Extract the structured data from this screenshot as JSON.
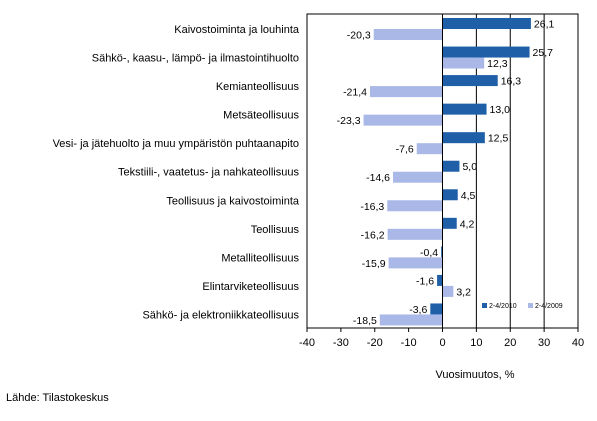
{
  "chart_data": {
    "type": "bar",
    "orientation": "horizontal",
    "categories": [
      "Kaivostoiminta ja louhinta",
      "Sähkö-, kaasu-, lämpö- ja ilmastointihuolto",
      "Kemianteollisuus",
      "Metsäteollisuus",
      "Vesi- ja jätehuolto ja muu ympäristön puhtaanapito",
      "Tekstiili-, vaatetus- ja nahkateollisuus",
      "Teollisuus ja kaivostoiminta",
      "Teollisuus",
      "Metalliteollisuus",
      "Elintarviketeollisuus",
      "Sähkö- ja elektroniikkateollisuus"
    ],
    "series": [
      {
        "name": "2-4/2010",
        "color": "#1f5fa8",
        "values": [
          26.1,
          25.7,
          16.3,
          13.0,
          12.5,
          5.0,
          4.5,
          4.2,
          -0.4,
          -1.6,
          -3.6
        ],
        "labels": [
          "26,1",
          "25,7",
          "16,3",
          "13,0",
          "12,5",
          "5,0",
          "4,5",
          "4,2",
          "-0,4",
          "-1,6",
          "-3,6"
        ]
      },
      {
        "name": "2-4/2009",
        "color": "#a9b8e6",
        "values": [
          -20.3,
          12.3,
          -21.4,
          -23.3,
          -7.6,
          -14.6,
          -16.3,
          -16.2,
          -15.9,
          3.2,
          -18.5
        ],
        "labels": [
          "-20,3",
          "12,3",
          "-21,4",
          "-23,3",
          "-7,6",
          "-14,6",
          "-16,3",
          "-16,2",
          "-15,9",
          "3,2",
          "-18,5"
        ]
      }
    ],
    "xlim": [
      -40,
      40
    ],
    "xticks": [
      -40,
      -30,
      -20,
      -10,
      0,
      10,
      20,
      30,
      40
    ],
    "xlabel": "Vuosimuutos, %",
    "grid": "vertical-positive",
    "legend_position": "bottom-right-inside"
  },
  "source": "Lähde: Tilastokeskus"
}
